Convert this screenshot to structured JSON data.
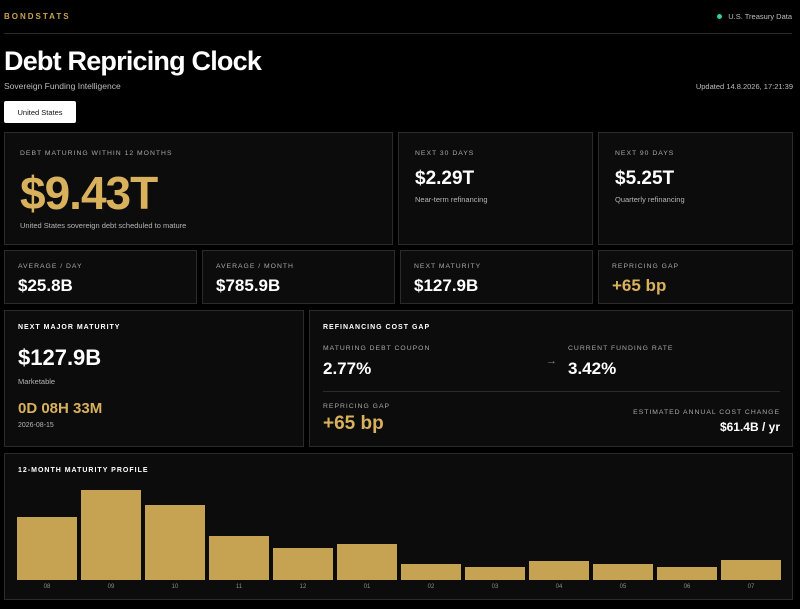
{
  "brand": "BONDSTATS",
  "source": "U.S. Treasury Data",
  "title": "Debt Repricing Clock",
  "subtitle": "Sovereign Funding Intelligence",
  "updated": "Updated 14.8.2026, 17:21:39",
  "country": "United States",
  "hero": {
    "label": "DEBT MATURING WITHIN 12 MONTHS",
    "value": "$9.43T",
    "sub": "United States sovereign debt scheduled to mature"
  },
  "next30": {
    "label": "NEXT 30 DAYS",
    "value": "$2.29T",
    "sub": "Near-term refinancing"
  },
  "next90": {
    "label": "NEXT 90 DAYS",
    "value": "$5.25T",
    "sub": "Quarterly refinancing"
  },
  "stats": [
    {
      "label": "AVERAGE / DAY",
      "value": "$25.8B"
    },
    {
      "label": "AVERAGE / MONTH",
      "value": "$785.9B"
    },
    {
      "label": "NEXT MATURITY",
      "value": "$127.9B"
    },
    {
      "label": "REPRICING GAP",
      "value": "+65 bp"
    }
  ],
  "major": {
    "label": "NEXT MAJOR MATURITY",
    "value": "$127.9B",
    "type": "Marketable",
    "countdown": "0D 08H 33M",
    "date": "2026-08-15"
  },
  "gap": {
    "label": "REFINANCING COST GAP",
    "coupon_label": "MATURING DEBT COUPON",
    "coupon_value": "2.77%",
    "arrow": "→",
    "rate_label": "CURRENT FUNDING RATE",
    "rate_value": "3.42%",
    "repricing_label": "REPRICING GAP",
    "repricing_value": "+65 bp",
    "cost_label": "ESTIMATED ANNUAL COST CHANGE",
    "cost_value": "$61.4B / yr"
  },
  "profile": {
    "label": "12-MONTH MATURITY PROFILE"
  },
  "chart_data": {
    "type": "bar",
    "categories": [
      "08",
      "09",
      "10",
      "11",
      "12",
      "01",
      "02",
      "03",
      "04",
      "05",
      "06",
      "07"
    ],
    "values": [
      1.0,
      1.42,
      1.19,
      0.7,
      0.5,
      0.57,
      0.25,
      0.2,
      0.3,
      0.26,
      0.21,
      0.31
    ],
    "ylim": [
      0,
      1.5
    ],
    "colors": {
      "bar": "#c6a253"
    }
  }
}
